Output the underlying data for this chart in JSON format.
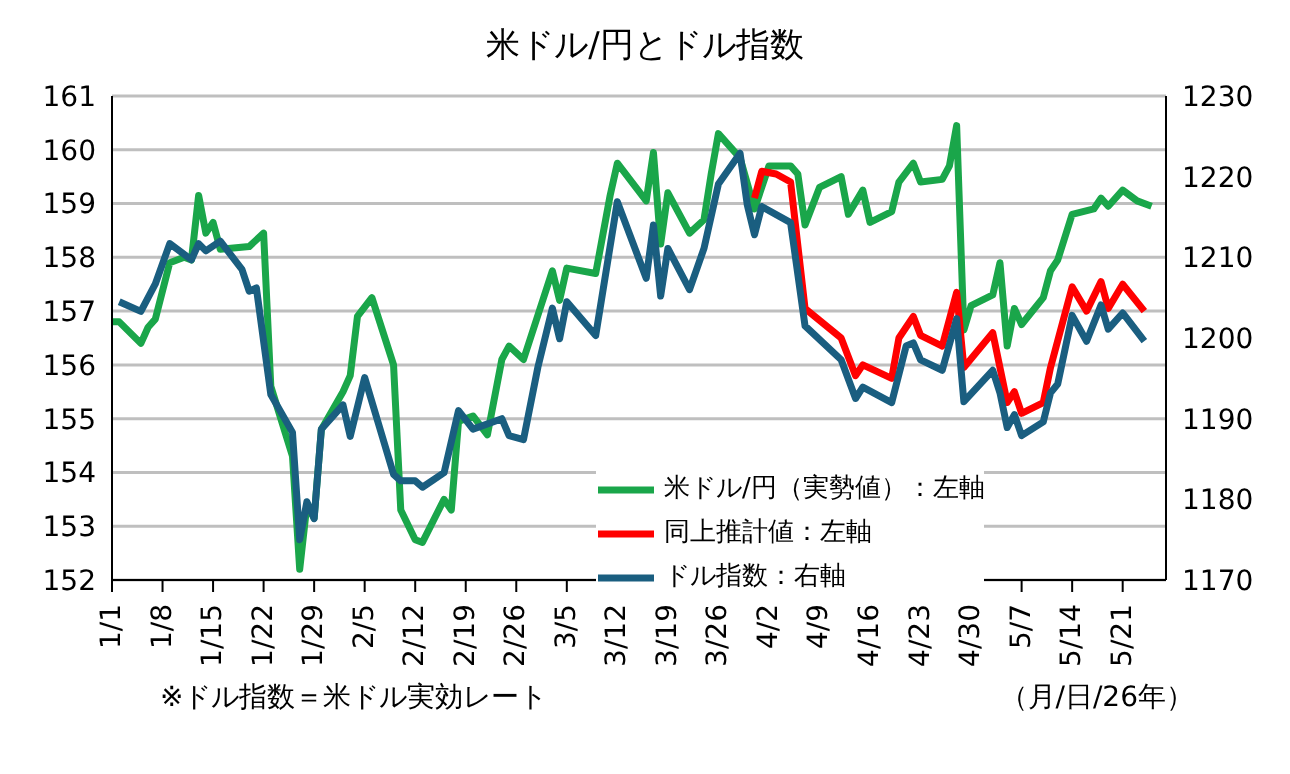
{
  "chart_data": {
    "type": "line",
    "title": "米ドル/円とドル指数",
    "xlim": [
      "--01-01",
      "--05-27"
    ],
    "xticks": [
      {
        "value": "--01-01",
        "label": "1/1"
      },
      {
        "value": "--01-08",
        "label": "1/8"
      },
      {
        "value": "--01-15",
        "label": "1/15"
      },
      {
        "value": "--01-22",
        "label": "1/22"
      },
      {
        "value": "--01-29",
        "label": "1/29"
      },
      {
        "value": "--02-05",
        "label": "2/5"
      },
      {
        "value": "--02-12",
        "label": "2/12"
      },
      {
        "value": "--02-19",
        "label": "2/19"
      },
      {
        "value": "--02-26",
        "label": "2/26"
      },
      {
        "value": "--03-05",
        "label": "3/5"
      },
      {
        "value": "--03-12",
        "label": "3/12"
      },
      {
        "value": "--03-19",
        "label": "3/19"
      },
      {
        "value": "--03-26",
        "label": "3/26"
      },
      {
        "value": "--04-02",
        "label": "4/2"
      },
      {
        "value": "--04-09",
        "label": "4/9"
      },
      {
        "value": "--04-16",
        "label": "4/16"
      },
      {
        "value": "--04-23",
        "label": "4/23"
      },
      {
        "value": "--04-30",
        "label": "4/30"
      },
      {
        "value": "--05-07",
        "label": "5/7"
      },
      {
        "value": "--05-14",
        "label": "5/14"
      },
      {
        "value": "--05-21",
        "label": "5/21"
      }
    ],
    "ylim": [
      152,
      161
    ],
    "yticks": [
      152,
      153,
      154,
      155,
      156,
      157,
      158,
      159,
      160,
      161
    ],
    "y2lim": [
      1170,
      1230
    ],
    "y2ticks": [
      1170,
      1180,
      1190,
      1200,
      1210,
      1220,
      1230
    ],
    "grid": "y",
    "legend": "bottom",
    "marker": "none",
    "line_style": "solid",
    "series": [
      {
        "name": "米ドル/円（実勢値）：左軸",
        "color": "#1aa64a",
        "x": [
          "--01-01",
          "--01-02",
          "--01-05",
          "--01-06",
          "--01-07",
          "--01-09",
          "--01-11",
          "--01-12",
          "--01-13",
          "--01-14",
          "--01-15",
          "--01-16",
          "--01-20",
          "--01-22",
          "--01-23",
          "--01-26",
          "--01-27",
          "--01-28",
          "--01-29",
          "--01-30",
          "--02-02",
          "--02-03",
          "--02-04",
          "--02-06",
          "--02-09",
          "--02-10",
          "--02-12",
          "--02-13",
          "--02-16",
          "--02-17",
          "--02-18",
          "--02-20",
          "--02-22",
          "--02-24",
          "--02-25",
          "--02-27",
          "--03-03",
          "--03-04",
          "--03-05",
          "--03-09",
          "--03-11",
          "--03-12",
          "--03-16",
          "--03-17",
          "--03-18",
          "--03-19",
          "--03-22",
          "--03-24",
          "--03-25",
          "--03-26",
          "--03-29",
          "--03-31",
          "--04-02",
          "--04-05",
          "--04-06",
          "--04-07",
          "--04-09",
          "--04-12",
          "--04-13",
          "--04-15",
          "--04-16",
          "--04-19",
          "--04-20",
          "--04-22",
          "--04-23",
          "--04-26",
          "--04-27",
          "--04-28",
          "--04-29",
          "--04-30",
          "--05-03",
          "--05-04",
          "--05-05",
          "--05-06",
          "--05-07",
          "--05-10",
          "--05-11",
          "--05-12",
          "--05-14",
          "--05-17",
          "--05-18",
          "--05-19",
          "--05-21",
          "--05-23",
          "--05-25"
        ],
        "values": [
          156.8,
          156.8,
          156.4,
          156.7,
          156.85,
          157.9,
          158.0,
          157.95,
          159.15,
          158.45,
          158.65,
          158.15,
          158.2,
          158.45,
          155.6,
          154.3,
          152.2,
          153.4,
          153.15,
          154.8,
          155.5,
          155.8,
          156.9,
          157.25,
          156.0,
          153.3,
          152.75,
          152.7,
          153.5,
          153.3,
          154.95,
          155.05,
          154.7,
          156.1,
          156.35,
          156.1,
          157.75,
          157.2,
          157.8,
          157.7,
          159.15,
          159.75,
          159.05,
          159.95,
          158.25,
          159.2,
          158.45,
          158.7,
          159.55,
          160.3,
          159.85,
          158.9,
          159.7,
          159.7,
          159.55,
          158.6,
          159.3,
          159.5,
          158.8,
          159.25,
          158.65,
          158.85,
          159.4,
          159.75,
          159.4,
          159.45,
          159.7,
          160.45,
          156.65,
          157.1,
          157.3,
          157.9,
          156.35,
          157.05,
          156.75,
          157.25,
          157.75,
          157.95,
          158.8,
          158.9,
          159.1,
          158.95,
          159.25,
          159.05,
          158.95
        ]
      },
      {
        "name": "同上推計値：左軸",
        "color": "#ff0000",
        "x": [
          "--03-31",
          "--04-01",
          "--04-03",
          "--04-05",
          "--04-07",
          "--04-12",
          "--04-14",
          "--04-15",
          "--04-19",
          "--04-20",
          "--04-22",
          "--04-23",
          "--04-26",
          "--04-28",
          "--04-29",
          "--05-03",
          "--05-05",
          "--05-06",
          "--05-07",
          "--05-10",
          "--05-11",
          "--05-14",
          "--05-16",
          "--05-18",
          "--05-19",
          "--05-21",
          "--05-24"
        ],
        "values": [
          159.1,
          159.6,
          159.55,
          159.4,
          157.05,
          156.5,
          155.8,
          156.0,
          155.75,
          156.5,
          156.9,
          156.55,
          156.35,
          157.35,
          155.95,
          156.6,
          155.3,
          155.5,
          155.1,
          155.3,
          155.95,
          157.45,
          157.0,
          157.55,
          157.05,
          157.5,
          157.0
        ]
      },
      {
        "name": "ドル指数：右軸",
        "color": "#1a5e80",
        "axis": "y2",
        "x": [
          "--01-02",
          "--01-05",
          "--01-07",
          "--01-09",
          "--01-12",
          "--01-13",
          "--01-14",
          "--01-16",
          "--01-19",
          "--01-20",
          "--01-21",
          "--01-23",
          "--01-26",
          "--01-27",
          "--01-28",
          "--01-29",
          "--01-30",
          "--02-02",
          "--02-03",
          "--02-05",
          "--02-09",
          "--02-10",
          "--02-12",
          "--02-13",
          "--02-16",
          "--02-18",
          "--02-20",
          "--02-24",
          "--02-25",
          "--02-27",
          "--03-01",
          "--03-03",
          "--03-04",
          "--03-05",
          "--03-09",
          "--03-12",
          "--03-16",
          "--03-17",
          "--03-18",
          "--03-19",
          "--03-22",
          "--03-24",
          "--03-26",
          "--03-29",
          "--03-30",
          "--03-31",
          "--04-01",
          "--04-05",
          "--04-07",
          "--04-12",
          "--04-14",
          "--04-15",
          "--04-19",
          "--04-21",
          "--04-22",
          "--04-23",
          "--04-26",
          "--04-28",
          "--04-29",
          "--05-03",
          "--05-04",
          "--05-05",
          "--05-06",
          "--05-07",
          "--05-10",
          "--05-11",
          "--05-12",
          "--05-14",
          "--05-16",
          "--05-18",
          "--05-19",
          "--05-21",
          "--05-24"
        ],
        "values": [
          1204.5,
          1203.3,
          1206.7,
          1211.7,
          1209.7,
          1211.7,
          1210.8,
          1212,
          1208.5,
          1205.8,
          1206.2,
          1193,
          1188.3,
          1175,
          1179.7,
          1177.6,
          1188.7,
          1191.7,
          1187.8,
          1195.1,
          1183.1,
          1182.3,
          1182.3,
          1181.5,
          1183.3,
          1191,
          1188.7,
          1190,
          1187.9,
          1187.4,
          1196.4,
          1203.7,
          1199.9,
          1204.5,
          1200.3,
          1216.9,
          1207.4,
          1214,
          1205.2,
          1211.1,
          1206,
          1211.1,
          1219.1,
          1222.9,
          1216.5,
          1212.8,
          1216.3,
          1214.3,
          1201.5,
          1197.3,
          1192.5,
          1193.9,
          1192,
          1199,
          1199.4,
          1197.3,
          1196,
          1202.4,
          1192.1,
          1196,
          1193.2,
          1188.9,
          1190.5,
          1187.9,
          1189.6,
          1193.2,
          1194.3,
          1202.8,
          1199.6,
          1204.1,
          1201.1,
          1203.1,
          1199.6
        ]
      }
    ],
    "annotations": [
      "※ドル指数＝米ドル実効レート",
      "（月/日/26年）"
    ]
  }
}
